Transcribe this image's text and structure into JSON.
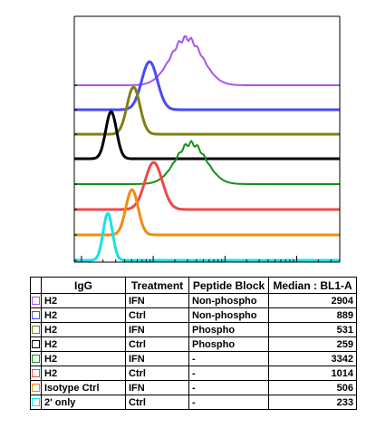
{
  "chart_data": {
    "type": "histogram-overlay",
    "x_scale": "log",
    "grid": false,
    "y_tick_labels_shown": false,
    "series": [
      {
        "igg": "H2",
        "treatment": "IFN",
        "peptide_block": "Non-phospho",
        "median": "2904",
        "color": "#a855f0",
        "peak_x": 2904
      },
      {
        "igg": "H2",
        "treatment": "Ctrl",
        "peptide_block": "Non-phospho",
        "median": "889",
        "color": "#4a4af5",
        "peak_x": 889
      },
      {
        "igg": "H2",
        "treatment": "IFN",
        "peptide_block": "Phospho",
        "median": "531",
        "color": "#808010",
        "peak_x": 531
      },
      {
        "igg": "H2",
        "treatment": "Ctrl",
        "peptide_block": "Phospho",
        "median": "259",
        "color": "#000000",
        "peak_x": 259
      },
      {
        "igg": "H2",
        "treatment": "IFN",
        "peptide_block": "-",
        "median": "3342",
        "color": "#1a8c1a",
        "peak_x": 3342
      },
      {
        "igg": "H2",
        "treatment": "Ctrl",
        "peptide_block": "-",
        "median": "1014",
        "color": "#f04848",
        "peak_x": 1014
      },
      {
        "igg": "Isotype Ctrl",
        "treatment": "IFN",
        "peptide_block": "-",
        "median": "506",
        "color": "#f58a10",
        "peak_x": 506
      },
      {
        "igg": "2' only",
        "treatment": "Ctrl",
        "peptide_block": "-",
        "median": "233",
        "color": "#18e0e8",
        "peak_x": 233
      }
    ]
  },
  "table": {
    "headers": {
      "igg": "IgG",
      "treatment": "Treatment",
      "peptide_block": "Peptide Block",
      "median": "Median : BL1-A"
    }
  }
}
